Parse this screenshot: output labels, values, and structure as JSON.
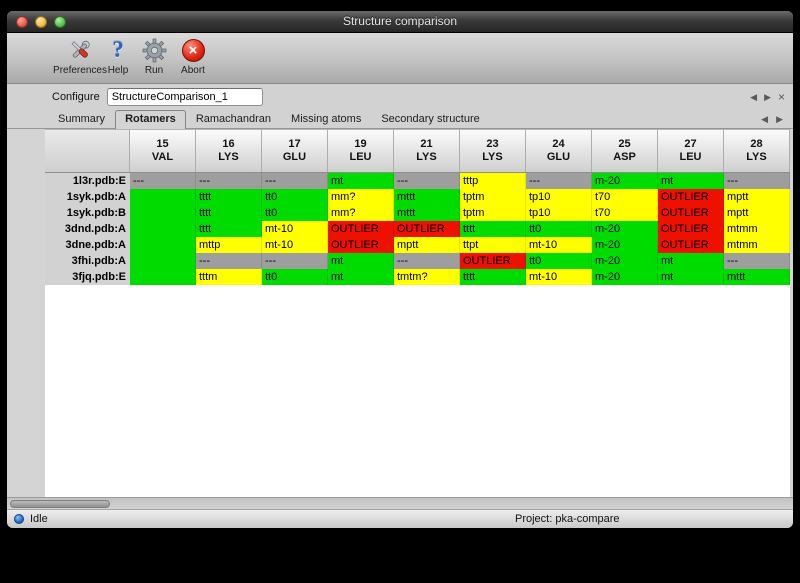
{
  "window": {
    "title": "Structure comparison"
  },
  "toolbar": {
    "buttons": [
      {
        "name": "preferences",
        "label": "Preferences",
        "icon": "tools-icon"
      },
      {
        "name": "help",
        "label": "Help",
        "icon": "question-icon"
      },
      {
        "name": "run",
        "label": "Run",
        "icon": "gear-icon"
      },
      {
        "name": "abort",
        "label": "Abort",
        "icon": "abort-cross-icon"
      }
    ]
  },
  "configure": {
    "label": "Configure",
    "value": "StructureComparison_1"
  },
  "icons": {
    "prev": "◀",
    "next": "▶",
    "close": "×",
    "abort_glyph": "×"
  },
  "tabs": [
    "Summary",
    "Rotamers",
    "Ramachandran",
    "Missing atoms",
    "Secondary structure"
  ],
  "active_tab": "Rotamers",
  "rotamer_table": {
    "columns": [
      {
        "num": "15",
        "res": "VAL"
      },
      {
        "num": "16",
        "res": "LYS"
      },
      {
        "num": "17",
        "res": "GLU"
      },
      {
        "num": "19",
        "res": "LEU"
      },
      {
        "num": "21",
        "res": "LYS"
      },
      {
        "num": "23",
        "res": "LYS"
      },
      {
        "num": "24",
        "res": "GLU"
      },
      {
        "num": "25",
        "res": "ASP"
      },
      {
        "num": "27",
        "res": "LEU"
      },
      {
        "num": "28",
        "res": "LYS"
      }
    ],
    "legend_colors": {
      "favored": "#00dc00",
      "allowed": "#ffff00",
      "outlier": "#ee1100",
      "missing": "#9e9e9e"
    },
    "rows": [
      {
        "label": "1l3r.pdb:E",
        "cells": [
          {
            "text": "---",
            "state": "missing"
          },
          {
            "text": "---",
            "state": "missing"
          },
          {
            "text": "---",
            "state": "missing"
          },
          {
            "text": "mt",
            "state": "favored"
          },
          {
            "text": "---",
            "state": "missing"
          },
          {
            "text": "tttp",
            "state": "allowed"
          },
          {
            "text": "---",
            "state": "missing"
          },
          {
            "text": "m-20",
            "state": "favored"
          },
          {
            "text": "mt",
            "state": "favored"
          },
          {
            "text": "---",
            "state": "missing"
          }
        ]
      },
      {
        "label": "1syk.pdb:A",
        "cells": [
          {
            "text": "",
            "state": "favored"
          },
          {
            "text": "tttt",
            "state": "favored"
          },
          {
            "text": "tt0",
            "state": "favored"
          },
          {
            "text": "mm?",
            "state": "allowed"
          },
          {
            "text": "mttt",
            "state": "favored"
          },
          {
            "text": "tptm",
            "state": "allowed"
          },
          {
            "text": "tp10",
            "state": "allowed"
          },
          {
            "text": "t70",
            "state": "allowed"
          },
          {
            "text": "OUTLIER",
            "state": "outlier"
          },
          {
            "text": "mptt",
            "state": "allowed"
          }
        ]
      },
      {
        "label": "1syk.pdb:B",
        "cells": [
          {
            "text": "",
            "state": "favored"
          },
          {
            "text": "tttt",
            "state": "favored"
          },
          {
            "text": "tt0",
            "state": "favored"
          },
          {
            "text": "mm?",
            "state": "allowed"
          },
          {
            "text": "mttt",
            "state": "favored"
          },
          {
            "text": "tptm",
            "state": "allowed"
          },
          {
            "text": "tp10",
            "state": "allowed"
          },
          {
            "text": "t70",
            "state": "allowed"
          },
          {
            "text": "OUTLIER",
            "state": "outlier"
          },
          {
            "text": "mptt",
            "state": "allowed"
          }
        ]
      },
      {
        "label": "3dnd.pdb:A",
        "cells": [
          {
            "text": "",
            "state": "favored"
          },
          {
            "text": "tttt",
            "state": "favored"
          },
          {
            "text": "mt-10",
            "state": "allowed"
          },
          {
            "text": "OUTLIER",
            "state": "outlier"
          },
          {
            "text": "OUTLIER",
            "state": "outlier"
          },
          {
            "text": "tttt",
            "state": "favored"
          },
          {
            "text": "tt0",
            "state": "favored"
          },
          {
            "text": "m-20",
            "state": "favored"
          },
          {
            "text": "OUTLIER",
            "state": "outlier"
          },
          {
            "text": "mtmm",
            "state": "allowed"
          }
        ]
      },
      {
        "label": "3dne.pdb:A",
        "cells": [
          {
            "text": "",
            "state": "favored"
          },
          {
            "text": "mttp",
            "state": "allowed"
          },
          {
            "text": "mt-10",
            "state": "allowed"
          },
          {
            "text": "OUTLIER",
            "state": "outlier"
          },
          {
            "text": "mptt",
            "state": "allowed"
          },
          {
            "text": "ttpt",
            "state": "allowed"
          },
          {
            "text": "mt-10",
            "state": "allowed"
          },
          {
            "text": "m-20",
            "state": "favored"
          },
          {
            "text": "OUTLIER",
            "state": "outlier"
          },
          {
            "text": "mtmm",
            "state": "allowed"
          }
        ]
      },
      {
        "label": "3fhi.pdb:A",
        "cells": [
          {
            "text": "",
            "state": "favored"
          },
          {
            "text": "---",
            "state": "missing"
          },
          {
            "text": "---",
            "state": "missing"
          },
          {
            "text": "mt",
            "state": "favored"
          },
          {
            "text": "---",
            "state": "missing"
          },
          {
            "text": "OUTLIER",
            "state": "outlier"
          },
          {
            "text": "tt0",
            "state": "favored"
          },
          {
            "text": "m-20",
            "state": "favored"
          },
          {
            "text": "mt",
            "state": "favored"
          },
          {
            "text": "---",
            "state": "missing"
          }
        ]
      },
      {
        "label": "3fjq.pdb:E",
        "cells": [
          {
            "text": "",
            "state": "favored"
          },
          {
            "text": "tttm",
            "state": "allowed"
          },
          {
            "text": "tt0",
            "state": "favored"
          },
          {
            "text": "mt",
            "state": "favored"
          },
          {
            "text": "tmtm?",
            "state": "allowed"
          },
          {
            "text": "tttt",
            "state": "favored"
          },
          {
            "text": "mt-10",
            "state": "allowed"
          },
          {
            "text": "m-20",
            "state": "favored"
          },
          {
            "text": "mt",
            "state": "favored"
          },
          {
            "text": "mttt",
            "state": "favored"
          }
        ]
      }
    ]
  },
  "statusbar": {
    "status": "Idle",
    "project": "Project: pka-compare"
  }
}
